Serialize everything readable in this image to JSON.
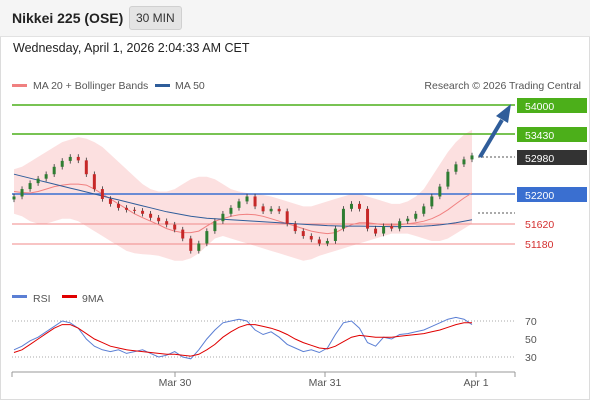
{
  "header": {
    "title": "Nikkei 225 (OSE)",
    "timeframe": "30 MIN",
    "datetime": "Wednesday, April 1, 2026 2:04:33 AM CET"
  },
  "legend": {
    "ma20": "MA 20 + Bollinger Bands",
    "ma50": "MA 50",
    "copyright": "Research © 2026 Trading Central",
    "ma20_color": "#f08080",
    "ma50_color": "#2f5d9a"
  },
  "rsi_legend": {
    "rsi": "RSI",
    "ma9": "9MA",
    "rsi_color": "#5b7fd4",
    "ma9_color": "#e00000"
  },
  "chart_data": {
    "type": "line",
    "price_levels": {
      "resistance_green": [
        "54000",
        "53430"
      ],
      "current": "52980",
      "pivot_blue": "52200",
      "support_red": [
        "51620",
        "51180"
      ]
    },
    "x_ticks": [
      "Mar 30",
      "Mar 31",
      "Apr 1"
    ],
    "rsi_ticks": [
      "70",
      "50",
      "30"
    ],
    "close": [
      52150,
      52300,
      52420,
      52510,
      52600,
      52750,
      52870,
      52950,
      52880,
      52600,
      52300,
      52100,
      52000,
      51920,
      51880,
      51860,
      51800,
      51720,
      51650,
      51580,
      51480,
      51300,
      51050,
      51200,
      51450,
      51650,
      51800,
      51920,
      52050,
      52150,
      51950,
      51850,
      51900,
      51850,
      51600,
      51450,
      51350,
      51280,
      51200,
      51250,
      51500,
      51900,
      52000,
      51900,
      51500,
      51400,
      51550,
      51500,
      51650,
      51700,
      51800,
      51950,
      52150,
      52350,
      52650,
      52800,
      52900,
      52980
    ],
    "ma20": [
      52250,
      52230,
      52220,
      52250,
      52300,
      52350,
      52380,
      52400,
      52400,
      52380,
      52300,
      52200,
      52100,
      52000,
      51900,
      51800,
      51720,
      51650,
      51580,
      51500,
      51450,
      51420,
      51420,
      51450,
      51550,
      51650,
      51700,
      51750,
      51780,
      51790,
      51780,
      51750,
      51700,
      51650,
      51600,
      51550,
      51500,
      51450,
      51420,
      51400,
      51420,
      51500,
      51580,
      51620,
      51620,
      51600,
      51580,
      51570,
      51580,
      51600,
      51620,
      51650,
      51700,
      51780,
      51880,
      52000,
      52120,
      52220
    ],
    "ma50": [
      52600,
      52560,
      52520,
      52480,
      52440,
      52400,
      52360,
      52320,
      52280,
      52240,
      52200,
      52160,
      52120,
      52080,
      52040,
      52000,
      51960,
      51920,
      51880,
      51840,
      51810,
      51780,
      51750,
      51730,
      51710,
      51700,
      51690,
      51680,
      51670,
      51660,
      51650,
      51640,
      51630,
      51620,
      51610,
      51600,
      51590,
      51580,
      51570,
      51560,
      51555,
      51550,
      51550,
      51550,
      51548,
      51545,
      51543,
      51540,
      51540,
      51542,
      51545,
      51550,
      51560,
      51575,
      51595,
      51620,
      51650,
      51680
    ],
    "bb_upper": [
      52700,
      52750,
      52850,
      52950,
      53050,
      53150,
      53250,
      53300,
      53350,
      53320,
      53250,
      53150,
      53000,
      52850,
      52700,
      52550,
      52400,
      52300,
      52250,
      52250,
      52300,
      52400,
      52500,
      52550,
      52550,
      52500,
      52400,
      52300,
      52250,
      52220,
      52200,
      52180,
      52150,
      52100,
      52050,
      52000,
      51950,
      51950,
      52000,
      52050,
      52100,
      52150,
      52200,
      52200,
      52150,
      52100,
      52050,
      52000,
      52000,
      52050,
      52150,
      52300,
      52550,
      52800,
      53050,
      53250,
      53400,
      53500
    ],
    "bb_lower": [
      51800,
      51750,
      51650,
      51600,
      51600,
      51650,
      51700,
      51700,
      51650,
      51550,
      51450,
      51350,
      51250,
      51150,
      51050,
      51000,
      50980,
      50970,
      50950,
      50900,
      50850,
      50850,
      50900,
      51000,
      51150,
      51300,
      51350,
      51300,
      51250,
      51200,
      51150,
      51100,
      51050,
      51000,
      50950,
      50900,
      50850,
      50880,
      50950,
      51000,
      51050,
      51100,
      51150,
      51200,
      51250,
      51300,
      51350,
      51400,
      51400,
      51400,
      51350,
      51300,
      51250,
      51250,
      51300,
      51400,
      51500,
      51600
    ],
    "rsi": [
      38,
      42,
      48,
      52,
      58,
      64,
      70,
      68,
      62,
      50,
      42,
      38,
      36,
      38,
      34,
      36,
      38,
      34,
      30,
      32,
      36,
      30,
      28,
      38,
      50,
      60,
      68,
      70,
      72,
      70,
      60,
      55,
      58,
      52,
      44,
      40,
      36,
      38,
      35,
      40,
      55,
      68,
      70,
      62,
      46,
      42,
      52,
      50,
      55,
      56,
      58,
      60,
      64,
      68,
      72,
      74,
      72,
      66
    ],
    "rsi_ma9": [
      35,
      38,
      44,
      50,
      56,
      62,
      66,
      66,
      62,
      56,
      50,
      46,
      42,
      40,
      38,
      37,
      36,
      35,
      34,
      33,
      33,
      32,
      31,
      33,
      38,
      44,
      52,
      58,
      63,
      66,
      66,
      64,
      62,
      59,
      55,
      50,
      46,
      43,
      40,
      39,
      42,
      47,
      52,
      54,
      53,
      52,
      52,
      52,
      53,
      54,
      55,
      56,
      58,
      60,
      63,
      66,
      68,
      68
    ]
  }
}
